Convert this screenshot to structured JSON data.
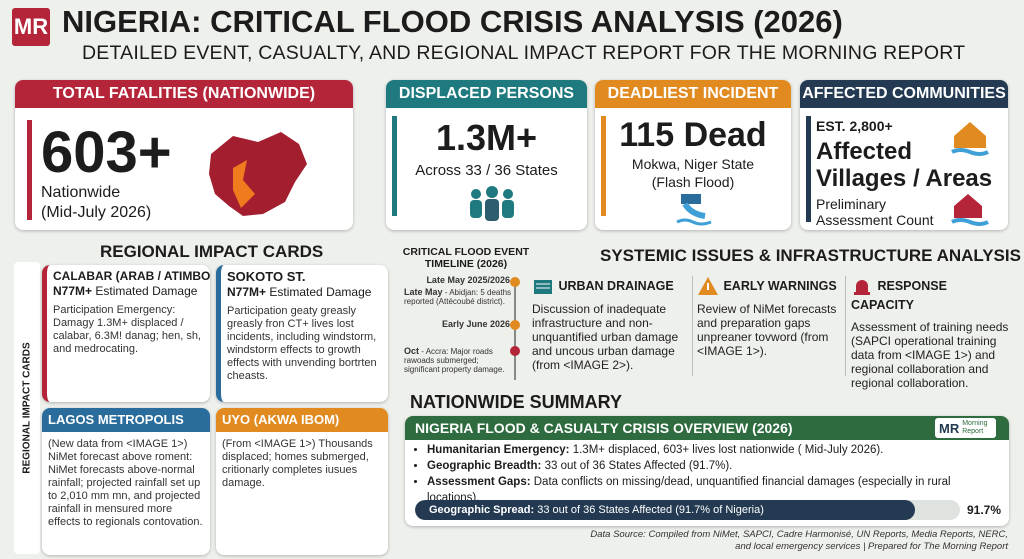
{
  "header": {
    "logo": "MR",
    "title": "NIGERIA: CRITICAL FLOOD CRISIS ANALYSIS (2026)",
    "subtitle": "DETAILED EVENT, CASUALTY, AND REGIONAL IMPACT REPORT FOR THE MORNING REPORT"
  },
  "stats": [
    {
      "label": "TOTAL FATALITIES (NATIONWIDE)",
      "value": "603+",
      "lines": [
        "Nationwide",
        "(Mid-July 2026)"
      ]
    },
    {
      "label": "DISPLACED PERSONS",
      "value": "1.3M+",
      "lines": [
        "Across 33 / 36 States"
      ]
    },
    {
      "label": "DEADLIEST INCIDENT",
      "value": "115 Dead",
      "lines": [
        "Mokwa, Niger State",
        "(Flash Flood)"
      ]
    },
    {
      "label": "AFFECTED COMMUNITIES",
      "value": "EST. 2,800+",
      "lines": [
        "Affected",
        "Villages / Areas",
        "Preliminary",
        "Assessment Count"
      ]
    }
  ],
  "regional": {
    "title": "REGIONAL IMPACT CARDS",
    "side_label": "REGIONAL IMPACT CARDS",
    "cards": [
      {
        "title": "CALABAR (ARAB / ATIMBO)",
        "damage": "N77M+",
        "damage_label": "Estimated Damage",
        "text": "Participation Emergency: Damagy 1.3M+ displaced / calabar, 6.3M! danag; hen, sh, and medrocating."
      },
      {
        "title": "SOKOTO ST.",
        "damage": "N77M+",
        "damage_label": "Estimated Damage",
        "text": "Participation geaty greasly greasly fron CT+ lives lost incidents, including windstorm, windstorm effects to growth effects with unvending bortrten cheasts."
      },
      {
        "title": "LAGOS METROPOLIS",
        "text": "(New data from <IMAGE 1>) NiMet forecast above roment: NiMet forecasts above-normal rainfall; projected rainfall set up to 2,010 mm mn, and projected rainfall in mensured more effects to regionals contovation."
      },
      {
        "title": "UYO (AKWA IBOM)",
        "text": "(From <IMAGE 1>) Thousands displaced; homes submerged, critionarly completes iusues damage."
      }
    ]
  },
  "timeline": {
    "title": "CRITICAL FLOOD EVENT TIMELINE (2026)",
    "events": [
      {
        "date": "Late May 2025/2026",
        "text": ""
      },
      {
        "date": "Late May",
        "text": "- Abidjan: 5 deaths reported (Attécoubé district)."
      },
      {
        "date": "Early June 2026",
        "text": ""
      },
      {
        "date": "Oct",
        "text": "- Accra: Major roads rawoads submerged; significant property damage."
      }
    ]
  },
  "systemic": {
    "title": "SYSTEMIC ISSUES & INFRASTRUCTURE ANALYSIS",
    "columns": [
      {
        "title": "URBAN DRAINAGE",
        "text": "Discussion of inadequate infrastructure and non-unquantified urban damage and uncous urban damage (from <IMAGE 2>)."
      },
      {
        "title": "EARLY WARNINGS",
        "text": "Review of NiMet forecasts and preparation gaps unpreaner tovword (from <IMAGE 1>)."
      },
      {
        "title": "RESPONSE CAPACITY",
        "text": "Assessment of training needs (SAPCI operational training data from <IMAGE 1>) and regional collaboration and regional collaboration."
      }
    ]
  },
  "summary": {
    "title": "NATIONWIDE SUMMARY",
    "banner": "NIGERIA FLOOD & CASUALTY CRISIS OVERVIEW (2026)",
    "logo": "MR",
    "logo_text": "Morning Report",
    "bullets": [
      {
        "label": "Humanitarian Emergency:",
        "text": "1.3M+ displaced, 603+ lives lost nationwide ( Mid-July 2026)."
      },
      {
        "label": "Geographic Breadth:",
        "text": "33 out of 36 States Affected (91.7%)."
      },
      {
        "label": "Assessment Gaps:",
        "text": "Data conflicts on missing/dead, unquantified financial damages (especially in rural locations)."
      }
    ],
    "progress": {
      "label": "Geographic Spread:",
      "text": "33 out of 36 States Affected (91.7% of Nigeria)",
      "value": 91.7,
      "value_label": "91.7%"
    }
  },
  "footer": {
    "line1": "Data Source: Compiled from NiMet, SAPCI, Cadre Harmonisé, UN Reports, Media Reports, NERC,",
    "line2": "and local emergency services | Prepared for The Morning Report"
  }
}
